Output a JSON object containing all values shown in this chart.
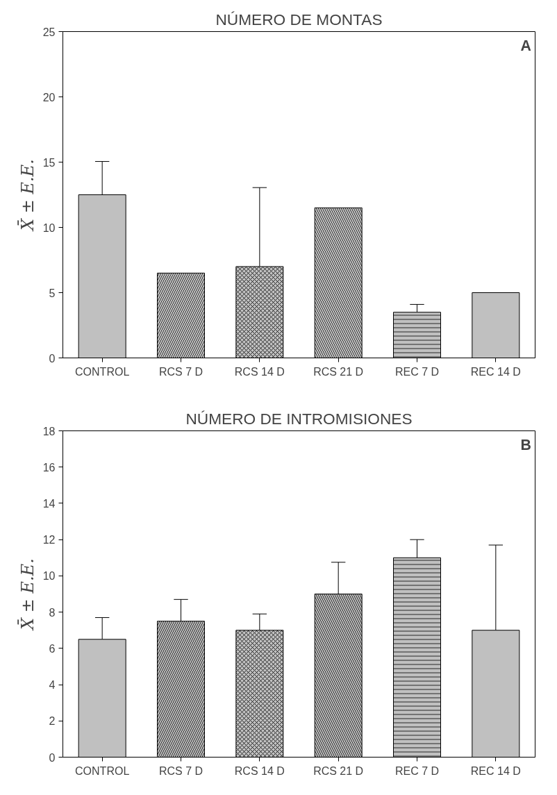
{
  "chart_data": [
    {
      "type": "bar",
      "title": "NÚMERO DE MONTAS",
      "ylabel": "X̄ ± E.E.",
      "annotations": [
        "A"
      ],
      "categories": [
        "CONTROL",
        "RCS 7 D",
        "RCS 14 D",
        "RCS 21 D",
        "REC 7 D",
        "REC 14 D"
      ],
      "values": [
        12.5,
        6.5,
        7,
        11.5,
        3.5,
        5
      ],
      "errors": [
        2.55,
        null,
        6.05,
        null,
        0.6,
        null
      ],
      "colors": [
        "#c0c0c0",
        "#c8c8c8",
        "#c0c0c0",
        "#c8c8c8",
        "#c0c0c0",
        "#c0c0c0"
      ],
      "ylim": [
        0,
        25
      ],
      "yticks": [
        0,
        5,
        10,
        15,
        20,
        25
      ],
      "grid": false
    },
    {
      "type": "bar",
      "title": "NÚMERO DE INTROMISIONES",
      "ylabel": "X̄ ± E.E.",
      "annotations": [
        "B"
      ],
      "categories": [
        "CONTROL",
        "RCS 7 D",
        "RCS 14 D",
        "RCS 21 D",
        "REC 7 D",
        "REC 14 D"
      ],
      "values": [
        6.5,
        7.5,
        7,
        9,
        11,
        7
      ],
      "errors": [
        1.2,
        1.2,
        0.9,
        1.75,
        1,
        4.7
      ],
      "colors": [
        "#c0c0c0",
        "#c0c0c0",
        "#c0c0c0",
        "#c0c0c0",
        "#c0c0c0",
        "#c0c0c0"
      ],
      "ylim": [
        0,
        18
      ],
      "yticks": [
        0,
        2,
        4,
        6,
        8,
        10,
        12,
        14,
        16,
        18
      ],
      "grid": false
    }
  ]
}
